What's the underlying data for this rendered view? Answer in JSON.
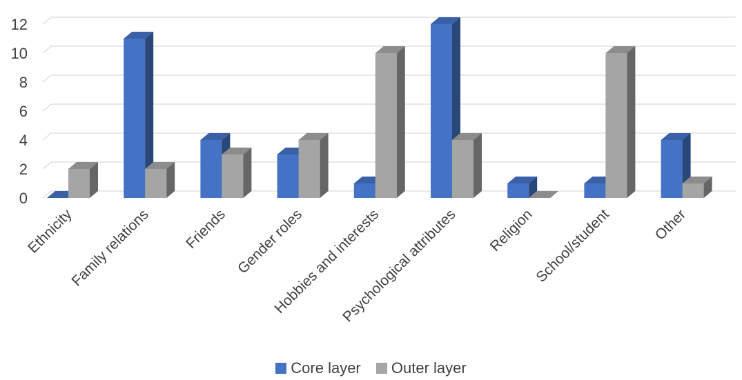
{
  "chart_data": {
    "type": "bar",
    "categories": [
      "Ethnicity",
      "Family relations",
      "Friends",
      "Gender roles",
      "Hobbies and interests",
      "Psychological attributes",
      "Religion",
      "School/student",
      "Other"
    ],
    "series": [
      {
        "name": "Core layer",
        "values": [
          0,
          11,
          4,
          3,
          1,
          12,
          1,
          1,
          4
        ],
        "color": "#4472C4"
      },
      {
        "name": "Outer layer",
        "values": [
          2,
          2,
          3,
          4,
          10,
          4,
          0,
          10,
          1
        ],
        "color": "#A5A5A5"
      }
    ],
    "ylim": [
      0,
      12
    ],
    "yticks": [
      0,
      2,
      4,
      6,
      8,
      10,
      12
    ],
    "grid": true,
    "legend_position": "bottom",
    "style": "3d-clustered-column"
  }
}
